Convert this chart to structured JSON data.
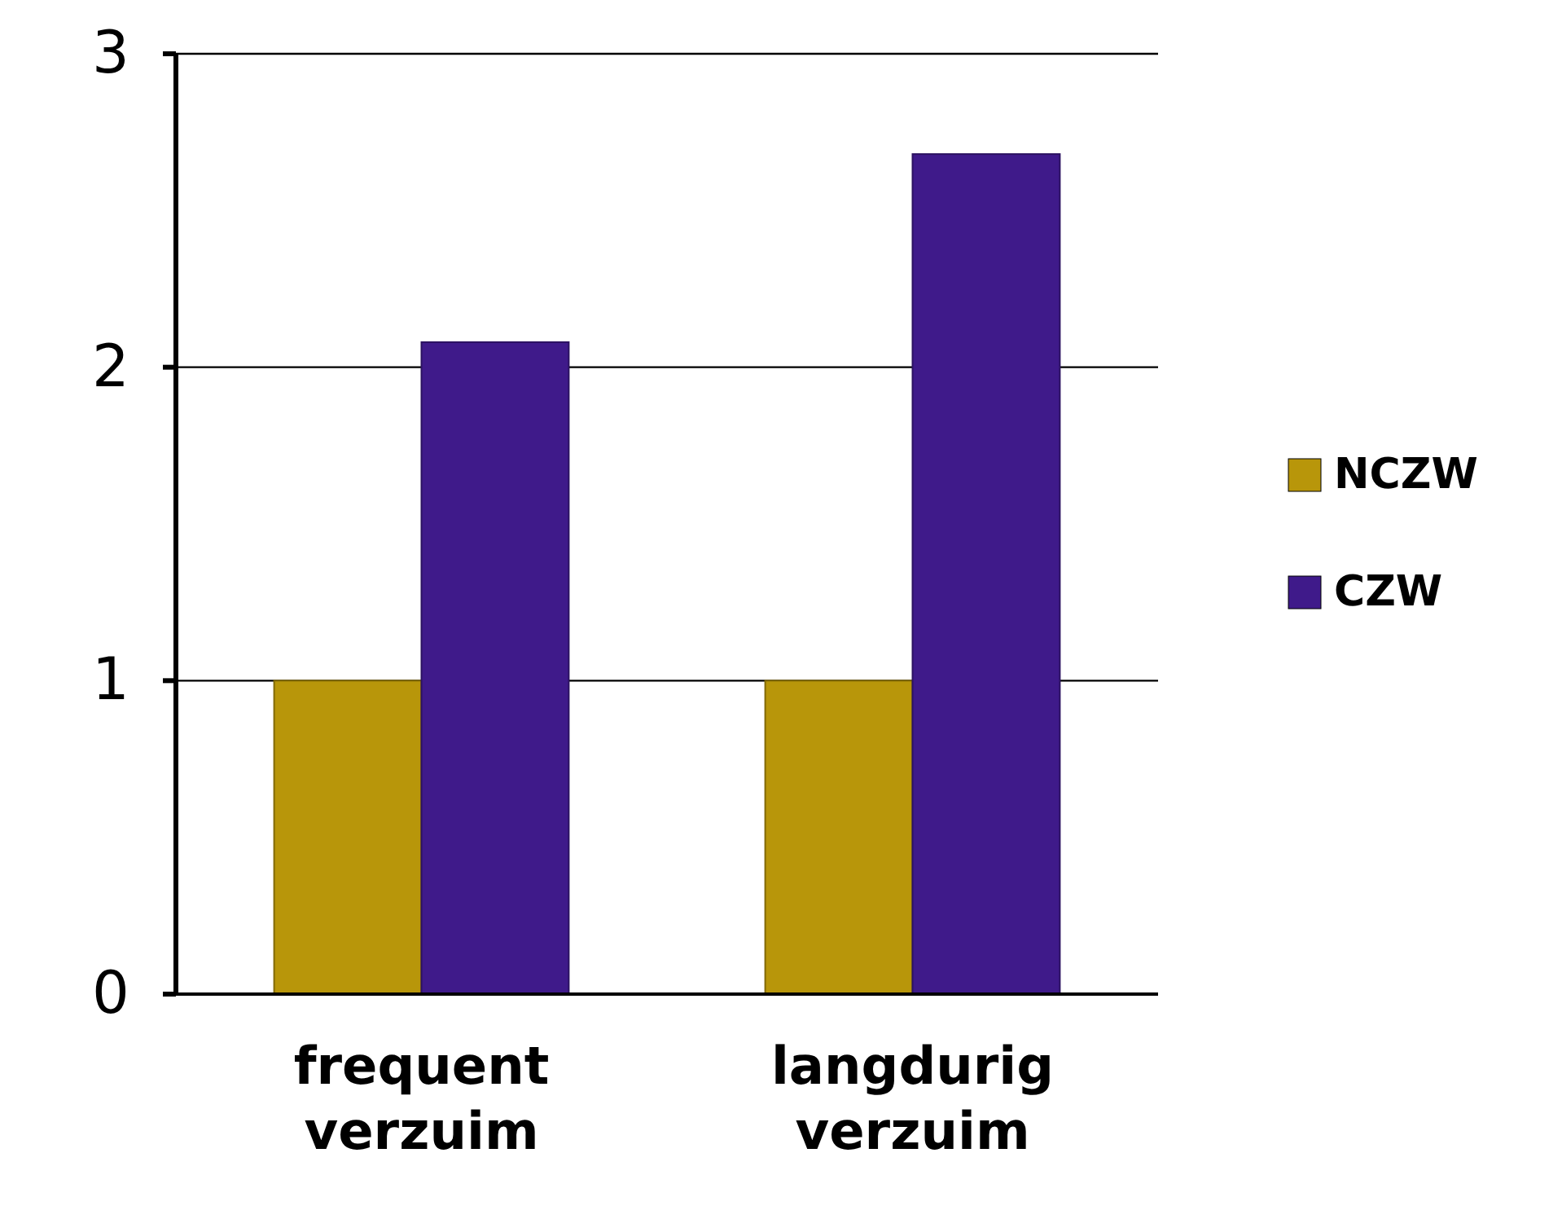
{
  "chart_data": {
    "type": "bar",
    "categories": [
      "frequent verzuim",
      "langdurig verzuim"
    ],
    "series": [
      {
        "name": "NCZW",
        "color": "#b8960a",
        "values": [
          1,
          1
        ]
      },
      {
        "name": "CZW",
        "color": "#3f1a8a",
        "values": [
          2.08,
          2.68
        ]
      }
    ],
    "ylim": [
      0,
      3
    ],
    "yticks": [
      0,
      1,
      2,
      3
    ],
    "grid": "y",
    "legend": "right"
  }
}
